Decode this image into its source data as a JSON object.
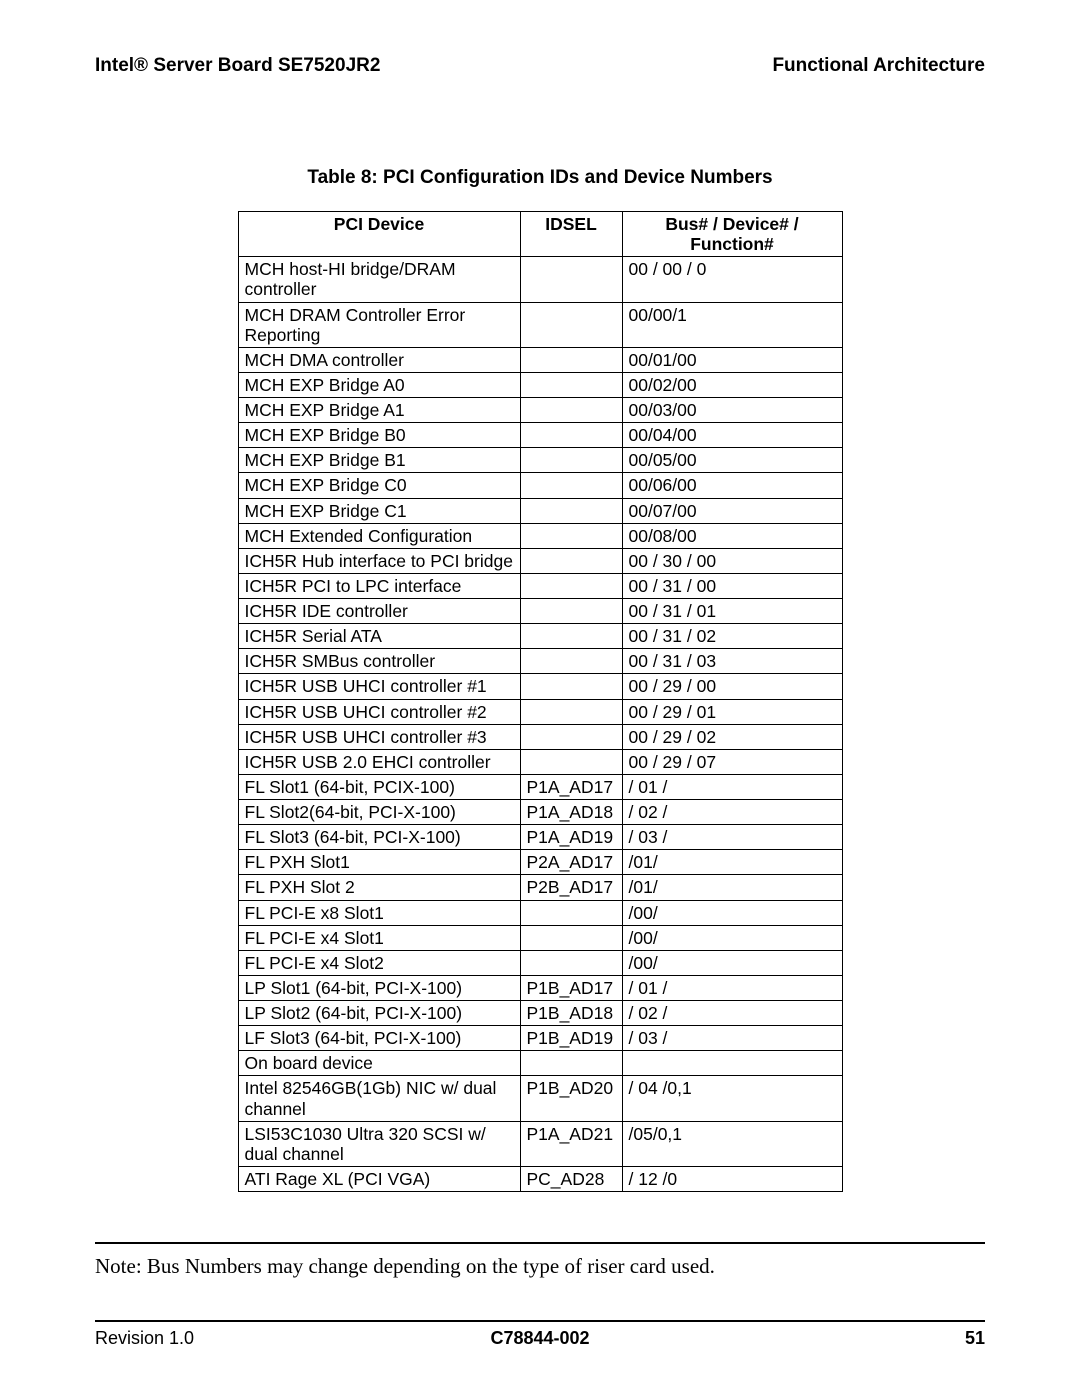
{
  "header": {
    "left": "Intel® Server Board SE7520JR2",
    "right": "Functional Architecture"
  },
  "caption": "Table 8: PCI Configuration IDs and Device Numbers",
  "table": {
    "columns": [
      "PCI Device",
      "IDSEL",
      "Bus# / Device# / Function#"
    ],
    "rows": [
      [
        "MCH host-HI bridge/DRAM controller",
        "",
        "00 / 00 / 0"
      ],
      [
        "MCH DRAM Controller Error Reporting",
        "",
        "00/00/1"
      ],
      [
        "MCH DMA controller",
        "",
        "00/01/00"
      ],
      [
        "MCH EXP Bridge A0",
        "",
        "00/02/00"
      ],
      [
        "MCH EXP Bridge A1",
        "",
        "00/03/00"
      ],
      [
        "MCH EXP Bridge B0",
        "",
        "00/04/00"
      ],
      [
        "MCH EXP Bridge B1",
        "",
        "00/05/00"
      ],
      [
        "MCH EXP Bridge C0",
        "",
        "00/06/00"
      ],
      [
        "MCH EXP Bridge C1",
        "",
        "00/07/00"
      ],
      [
        "MCH Extended Configuration",
        "",
        "00/08/00"
      ],
      [
        "ICH5R Hub interface to PCI bridge",
        "",
        "00 / 30 / 00"
      ],
      [
        "ICH5R PCI to LPC interface",
        "",
        "00 / 31 / 00"
      ],
      [
        "ICH5R IDE controller",
        "",
        "00 / 31 / 01"
      ],
      [
        "ICH5R Serial ATA",
        "",
        "00 / 31 / 02"
      ],
      [
        "ICH5R SMBus controller",
        "",
        "00 / 31 / 03"
      ],
      [
        "ICH5R USB UHCI controller #1",
        "",
        "00 / 29 / 00"
      ],
      [
        "ICH5R USB UHCI controller #2",
        "",
        "00 / 29 / 01"
      ],
      [
        "ICH5R USB UHCI controller #3",
        "",
        "00 / 29 / 02"
      ],
      [
        "ICH5R USB 2.0 EHCI controller",
        "",
        "00 / 29 / 07"
      ],
      [
        "FL Slot1 (64-bit, PCIX-100)",
        "P1A_AD17",
        " / 01 / "
      ],
      [
        "FL Slot2(64-bit, PCI-X-100)",
        "P1A_AD18",
        " / 02 / "
      ],
      [
        "FL Slot3 (64-bit, PCI-X-100)",
        "P1A_AD19",
        " / 03 / "
      ],
      [
        "FL PXH Slot1",
        "P2A_AD17",
        "  /01/"
      ],
      [
        "FL PXH Slot 2",
        "P2B_AD17",
        "  /01/"
      ],
      [
        "FL PCI-E x8 Slot1",
        "",
        "  /00/"
      ],
      [
        "FL PCI-E x4 Slot1",
        "",
        "  /00/"
      ],
      [
        "FL PCI-E x4 Slot2",
        "",
        "  /00/"
      ],
      [
        "LP Slot1 (64-bit, PCI-X-100)",
        "P1B_AD17",
        " / 01 / "
      ],
      [
        "LP Slot2 (64-bit, PCI-X-100)",
        "P1B_AD18",
        " / 02 / "
      ],
      [
        "LF Slot3 (64-bit, PCI-X-100)",
        "P1B_AD19",
        " / 03 / "
      ],
      [
        "On board device",
        "",
        ""
      ],
      [
        "Intel 82546GB(1Gb) NIC w/ dual channel",
        "P1B_AD20",
        " / 04 /0,1"
      ],
      [
        "LSI53C1030 Ultra 320 SCSI w/ dual channel",
        "P1A_AD21",
        " /05/0,1"
      ],
      [
        "ATI Rage XL (PCI VGA)",
        "PC_AD28",
        " / 12 /0"
      ]
    ]
  },
  "note": "Note: Bus Numbers may change depending on the type of riser card used.",
  "footer": {
    "revision": "Revision 1.0",
    "docnum": "C78844-002",
    "page": "51"
  }
}
